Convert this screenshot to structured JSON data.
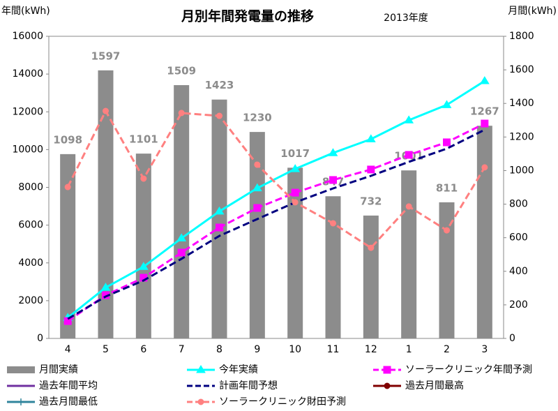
{
  "chart_data": {
    "type": "combo",
    "title": "月別年間発電量の推移",
    "subtitle": "2013年度",
    "y_label": "年間(kWh)",
    "y2_label": "月間(kWh)",
    "categories": [
      "4",
      "5",
      "6",
      "7",
      "8",
      "9",
      "10",
      "11",
      "12",
      "1",
      "2",
      "3"
    ],
    "ylim": [
      0,
      16000
    ],
    "yticks": [
      0,
      2000,
      4000,
      6000,
      8000,
      10000,
      12000,
      14000,
      16000
    ],
    "y2lim": [
      0,
      1800
    ],
    "y2ticks": [
      0,
      200,
      400,
      600,
      800,
      1000,
      1200,
      1400,
      1600,
      1800
    ],
    "series": [
      {
        "name": "月間実績",
        "type": "bar",
        "axis": "y2",
        "color": "#8c8c8c",
        "values": [
          1098,
          1597,
          1101,
          1509,
          1423,
          1230,
          1017,
          847,
          732,
          1001,
          811,
          1267
        ]
      },
      {
        "name": "今年実績",
        "type": "line",
        "color": "#00ffff",
        "marker": "triangle",
        "dash": false,
        "values": [
          1098,
          2695,
          3796,
          5305,
          6728,
          7958,
          8975,
          9822,
          10554,
          11555,
          12366,
          13633
        ]
      },
      {
        "name": "ソーラークリニック年間予測",
        "type": "line",
        "color": "#ff00ff",
        "marker": "square",
        "dash": true,
        "values": [
          920,
          2290,
          3215,
          4545,
          5875,
          6910,
          7720,
          8390,
          8945,
          9720,
          10385,
          11380
        ]
      },
      {
        "name": "過去年間平均",
        "type": "line",
        "color": "#7030a0",
        "marker": "none",
        "dash": false,
        "values": [
          null,
          null,
          null,
          null,
          null,
          null,
          null,
          null,
          null,
          null,
          null,
          null
        ]
      },
      {
        "name": "計画年間予想",
        "type": "line",
        "color": "#000080",
        "marker": "none",
        "dash": true,
        "values": [
          1035,
          2220,
          3070,
          4215,
          5430,
          6320,
          7205,
          7945,
          8610,
          9350,
          10050,
          11050
        ]
      },
      {
        "name": "過去月間最高",
        "type": "line",
        "axis": "y2",
        "color": "#800000",
        "marker": "circle",
        "dash": false,
        "values": [
          null,
          null,
          null,
          null,
          null,
          null,
          null,
          null,
          null,
          null,
          null,
          null
        ]
      },
      {
        "name": "過去月間最低",
        "type": "line",
        "axis": "y2",
        "color": "#31859c",
        "marker": "plus",
        "dash": false,
        "values": [
          null,
          null,
          null,
          null,
          null,
          null,
          null,
          null,
          null,
          null,
          null,
          null
        ]
      },
      {
        "name": "ソーラークリニック財田予測",
        "type": "line",
        "axis": "y2",
        "color": "#ff8080",
        "marker": "circle",
        "dash": true,
        "values": [
          902,
          1355,
          952,
          1343,
          1326,
          1035,
          811,
          686,
          540,
          786,
          644,
          1019
        ]
      }
    ]
  }
}
